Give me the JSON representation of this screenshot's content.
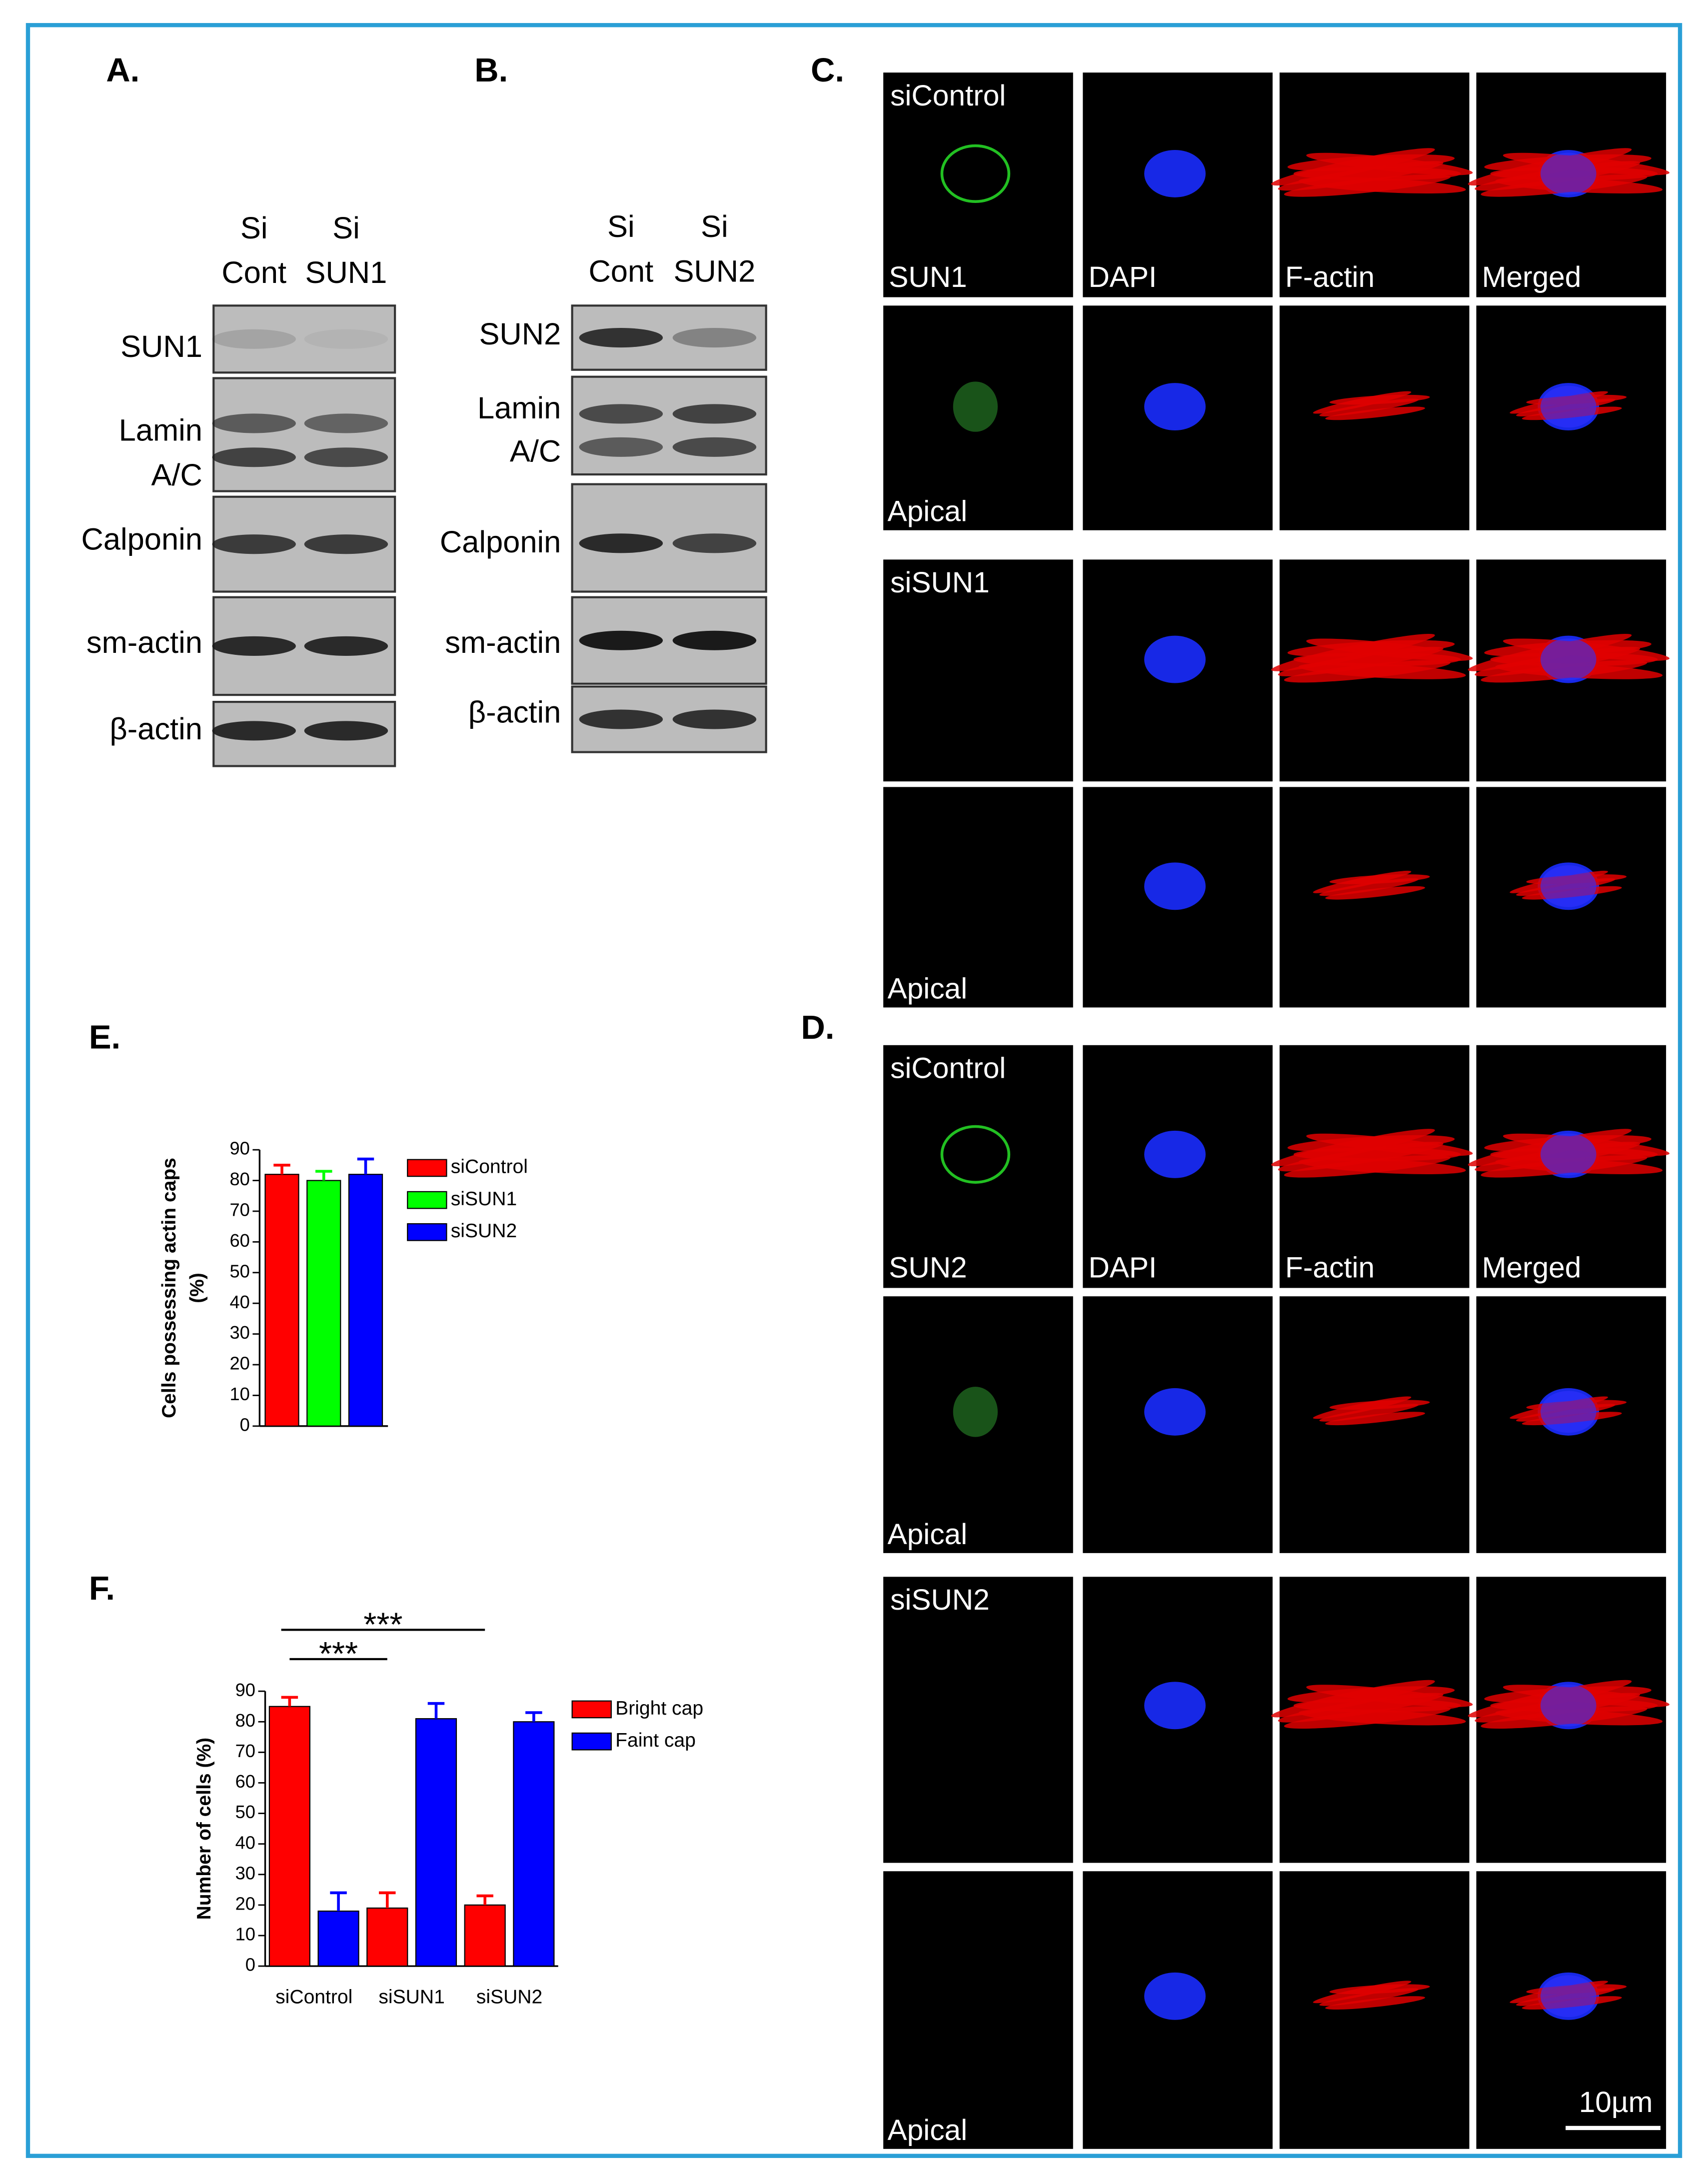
{
  "blot_a": {
    "label": "A.",
    "lanes": [
      [
        "Si",
        "Cont"
      ],
      [
        "Si",
        "SUN1"
      ]
    ],
    "rows": [
      [
        "SUN1"
      ],
      [
        "Lamin",
        "A/C"
      ],
      [
        "Calponin"
      ],
      [
        "sm-actin"
      ],
      [
        "β-actin"
      ]
    ]
  },
  "blot_b": {
    "label": "B.",
    "lanes": [
      [
        "Si",
        "Cont"
      ],
      [
        "Si",
        "SUN2"
      ]
    ],
    "rows": [
      [
        "SUN2"
      ],
      [
        "Lamin",
        "A/C"
      ],
      [
        "Calponin"
      ],
      [
        "sm-actin"
      ],
      [
        "β-actin"
      ]
    ]
  },
  "imaging_c": {
    "label": "C.",
    "groups": [
      {
        "name": "siControl",
        "channels": [
          "SUN1",
          "DAPI",
          "F-actin",
          "Merged"
        ],
        "apical": "Apical"
      },
      {
        "name": "siSUN1",
        "apical": "Apical"
      }
    ]
  },
  "imaging_d": {
    "label": "D.",
    "groups": [
      {
        "name": "siControl",
        "channels": [
          "SUN2",
          "DAPI",
          "F-actin",
          "Merged"
        ],
        "apical": "Apical"
      },
      {
        "name": "siSUN2",
        "apical": "Apical"
      }
    ],
    "scale_bar": "10µm"
  },
  "chart_data": [
    {
      "type": "bar",
      "panel_label": "E.",
      "ylabel": [
        "Cells possessing actin caps",
        "(%)"
      ],
      "ylim": [
        0,
        90
      ],
      "yticks": [
        0,
        10,
        20,
        30,
        40,
        50,
        60,
        70,
        80,
        90
      ],
      "legend": "right",
      "series": [
        {
          "name": "siControl",
          "color": "#ff0000",
          "values": [
            82
          ],
          "errors": [
            3
          ]
        },
        {
          "name": "siSUN1",
          "color": "#00ff00",
          "values": [
            80
          ],
          "errors": [
            3
          ]
        },
        {
          "name": "siSUN2",
          "color": "#0000ff",
          "values": [
            82
          ],
          "errors": [
            5
          ]
        }
      ]
    },
    {
      "type": "bar",
      "panel_label": "F.",
      "ylabel": [
        "Number of cells (%)"
      ],
      "ylim": [
        0,
        90
      ],
      "yticks": [
        0,
        10,
        20,
        30,
        40,
        50,
        60,
        70,
        80,
        90
      ],
      "legend": "right",
      "categories": [
        "siControl",
        "siSUN1",
        "siSUN2"
      ],
      "series": [
        {
          "name": "Bright cap",
          "color": "#ff0000",
          "values": [
            85,
            19,
            20
          ],
          "errors": [
            3,
            5,
            3
          ]
        },
        {
          "name": "Faint cap",
          "color": "#0000ff",
          "values": [
            18,
            81,
            80
          ],
          "errors": [
            6,
            5,
            3
          ]
        }
      ],
      "annotations": [
        "***",
        "***"
      ]
    }
  ]
}
